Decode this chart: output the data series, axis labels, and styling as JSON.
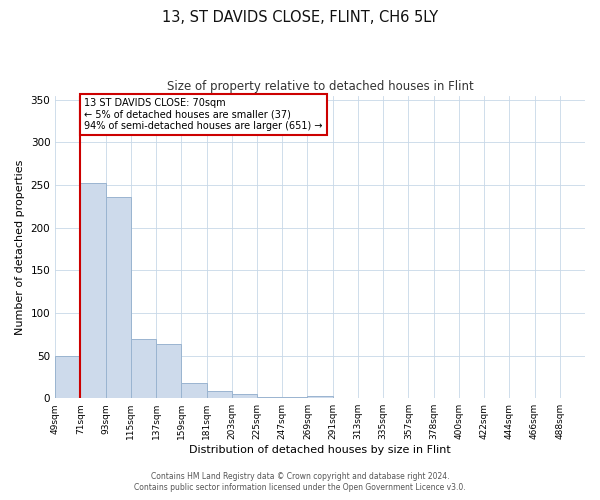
{
  "title": "13, ST DAVIDS CLOSE, FLINT, CH6 5LY",
  "subtitle": "Size of property relative to detached houses in Flint",
  "xlabel": "Distribution of detached houses by size in Flint",
  "ylabel": "Number of detached properties",
  "footer1": "Contains HM Land Registry data © Crown copyright and database right 2024.",
  "footer2": "Contains public sector information licensed under the Open Government Licence v3.0.",
  "annotation_title": "13 ST DAVIDS CLOSE: 70sqm",
  "annotation_line1": "← 5% of detached houses are smaller (37)",
  "annotation_line2": "94% of semi-detached houses are larger (651) →",
  "bar_color": "#cddaeb",
  "bar_edge_color": "#9ab4d0",
  "marker_line_color": "#cc0000",
  "annotation_box_edge": "#cc0000",
  "background_color": "#ffffff",
  "grid_color": "#c8d8e8",
  "bin_labels": [
    "49sqm",
    "71sqm",
    "93sqm",
    "115sqm",
    "137sqm",
    "159sqm",
    "181sqm",
    "203sqm",
    "225sqm",
    "247sqm",
    "269sqm",
    "291sqm",
    "313sqm",
    "335sqm",
    "357sqm",
    "378sqm",
    "400sqm",
    "422sqm",
    "444sqm",
    "466sqm",
    "488sqm"
  ],
  "bar_heights": [
    49,
    252,
    236,
    69,
    64,
    18,
    9,
    5,
    2,
    2,
    3,
    0,
    0,
    0,
    0,
    0,
    0,
    0,
    0,
    0,
    0
  ],
  "marker_bin_index": 1,
  "ylim": [
    0,
    355
  ],
  "yticks": [
    0,
    50,
    100,
    150,
    200,
    250,
    300,
    350
  ]
}
